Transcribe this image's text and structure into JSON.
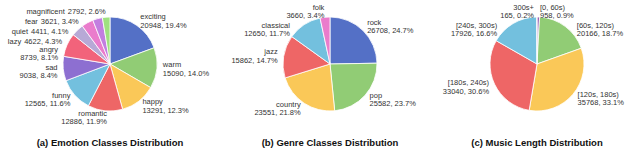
{
  "chart_data": [
    {
      "type": "pie",
      "title": "(a) Emotion Classes Distribution",
      "categories": [
        "exciting",
        "warm",
        "happy",
        "romantic",
        "funny",
        "sad",
        "angry",
        "lazy",
        "quiet",
        "fear",
        "magnificent"
      ],
      "values": [
        20948,
        15090,
        13291,
        12886,
        12565,
        9038,
        8739,
        4622,
        4411,
        3621,
        2792
      ],
      "value_labels": [
        "20948, 19.4%",
        "15090, 14.0%",
        "13291, 12.3%",
        "12886, 11.9%",
        "12565, 11.6%",
        "9038, 8.4%",
        "8739, 8.1%",
        "4622, 4.3%",
        "4411, 4.1%",
        "3621, 3.4%",
        "2792, 2.6%"
      ],
      "colors": [
        "#5470c6",
        "#91cc75",
        "#fac858",
        "#ee6666",
        "#73c0de",
        "#8d6fd1",
        "#f2637b",
        "#b7a9d6",
        "#ea7ccc",
        "#c27ee0",
        "#9fe080"
      ],
      "data_labels": true
    },
    {
      "type": "pie",
      "title": "(b) Genre Classes Distribution",
      "categories": [
        "rock",
        "pop",
        "country",
        "jazz",
        "classical",
        "folk"
      ],
      "values": [
        26708,
        25582,
        23551,
        15862,
        12650,
        3660
      ],
      "value_labels": [
        "26708, 24.7%",
        "25582, 23.7%",
        "23551, 21.8%",
        "15862, 14.7%",
        "12650, 11.7%",
        "3660, 3.4%"
      ],
      "colors": [
        "#5470c6",
        "#91cc75",
        "#fac858",
        "#ee6666",
        "#73c0de",
        "#ea7ccc"
      ],
      "data_labels": true
    },
    {
      "type": "pie",
      "title": "(c) Music Length Distribution",
      "categories": [
        "[0, 60s)",
        "[60s, 120s)",
        "[120s, 180s)",
        "[180s, 240s)",
        "[240s, 300s)",
        "300s+"
      ],
      "values": [
        958,
        20166,
        35768,
        33040,
        17926,
        165
      ],
      "value_labels": [
        "958, 0.9%",
        "20166, 18.7%",
        "35768, 33.1%",
        "33040, 30.6%",
        "17926, 16.6%",
        "165, 0.2%"
      ],
      "colors": [
        "#9a60b4",
        "#91cc75",
        "#fac858",
        "#ee6666",
        "#73c0de",
        "#5470c6"
      ],
      "data_labels": true
    }
  ]
}
